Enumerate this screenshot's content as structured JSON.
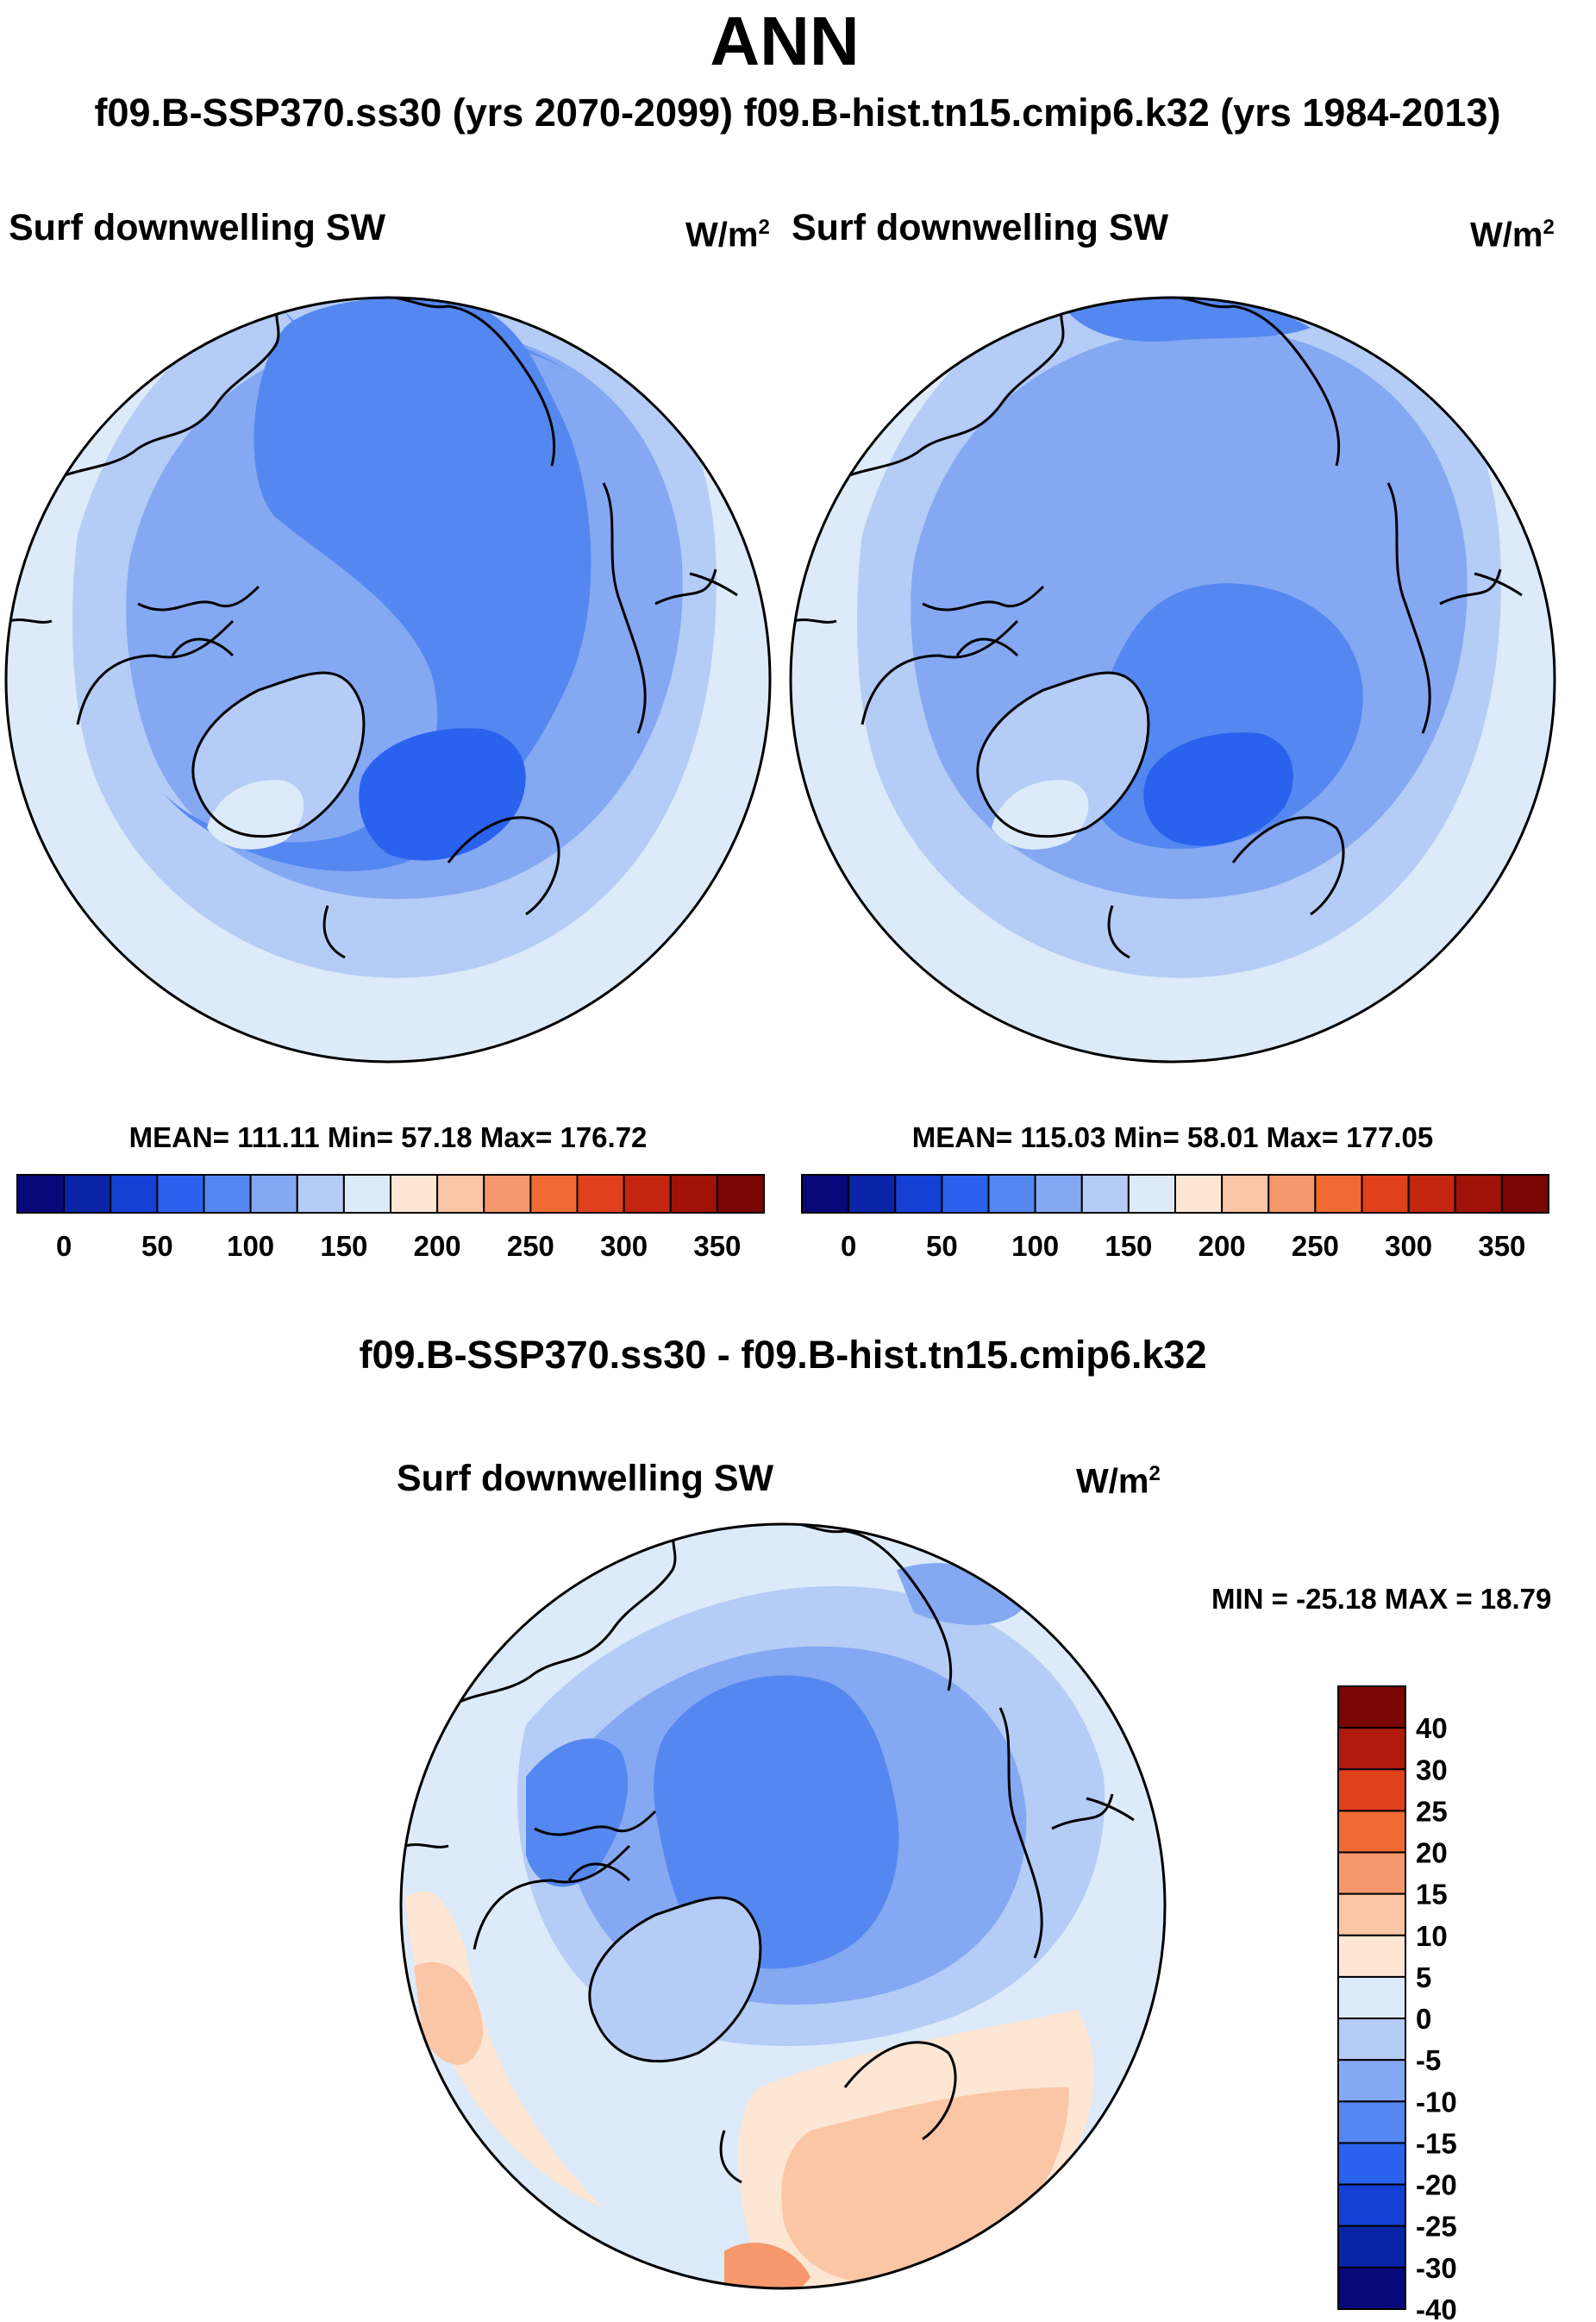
{
  "header": {
    "title": "ANN",
    "subtitle": "f09.B-SSP370.ss30 (yrs 2070-2099)  f09.B-hist.tn15.cmip6.k32 (yrs 1984-2013)"
  },
  "panels": [
    {
      "variable": "Surf downwelling SW",
      "units": "W/m",
      "units_sup": "2",
      "stats": "MEAN= 111.11  Min=  57.18  Max= 176.72"
    },
    {
      "variable": "Surf downwelling SW",
      "units": "W/m",
      "units_sup": "2",
      "stats": "MEAN= 115.03  Min=  58.01  Max= 177.05"
    }
  ],
  "diff": {
    "title": "f09.B-SSP370.ss30 - f09.B-hist.tn15.cmip6.k32",
    "variable": "Surf downwelling SW",
    "units": "W/m",
    "units_sup": "2",
    "stats": "MIN = -25.18 MAX =  18.79"
  },
  "colorbar_main": {
    "labels": [
      "0",
      "50",
      "100",
      "150",
      "200",
      "250",
      "300",
      "350"
    ],
    "colors": [
      "#08087a",
      "#0a24a8",
      "#1440d6",
      "#2a62ee",
      "#5488f0",
      "#84a8f2",
      "#b4ccf6",
      "#dceaf9",
      "#fde6d4",
      "#fbc6a6",
      "#f6986c",
      "#f06a34",
      "#e0401c",
      "#c42610",
      "#a01208",
      "#7a0604"
    ]
  },
  "colorbar_diff": {
    "labels": [
      "40",
      "30",
      "25",
      "20",
      "15",
      "10",
      "5",
      "0",
      "-5",
      "-10",
      "-15",
      "-20",
      "-25",
      "-30",
      "-40"
    ],
    "colors": [
      "#7a0604",
      "#b01a0c",
      "#e0401c",
      "#f06a34",
      "#f6986c",
      "#fbc6a6",
      "#fde6d4",
      "#dceaf9",
      "#b4ccf6",
      "#84a8f2",
      "#5488f0",
      "#2a62ee",
      "#1440d6",
      "#0a24a8",
      "#08087a"
    ]
  }
}
